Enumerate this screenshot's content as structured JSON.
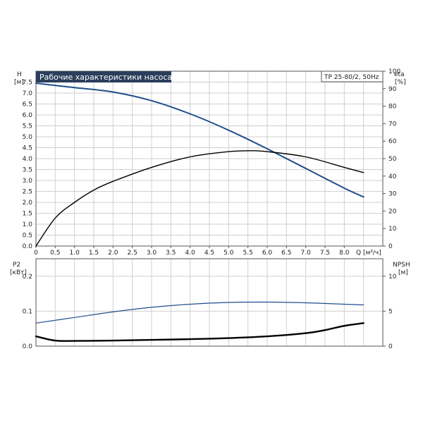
{
  "chart_data": [
    {
      "type": "line",
      "title": "Рабочие характеристики насоса",
      "model_label": "TP 25-80/2, 50Hz",
      "left_axis": {
        "label": "H",
        "unit": "[м]",
        "ylim": [
          0,
          8.0
        ],
        "ticks": [
          "0.0",
          "0.5",
          "1.0",
          "1.5",
          "2.0",
          "2.5",
          "3.0",
          "3.5",
          "4.0",
          "4.5",
          "5.0",
          "5.5",
          "6.0",
          "6.5",
          "7.0",
          "7.5"
        ]
      },
      "right_axis": {
        "label": "eta",
        "unit": "[%]",
        "ylim": [
          0,
          100
        ],
        "ticks": [
          "0",
          "10",
          "20",
          "30",
          "40",
          "50",
          "60",
          "70",
          "80",
          "90",
          "100"
        ]
      },
      "x_axis": {
        "label": "Q [м³/ч]",
        "xlim": [
          0,
          9.0
        ],
        "ticks": [
          "0",
          "0.5",
          "1.0",
          "1.5",
          "2.0",
          "2.5",
          "3.0",
          "3.5",
          "4.0",
          "4.5",
          "5.0",
          "5.5",
          "6.0",
          "6.5",
          "7.0",
          "7.5",
          "8.0"
        ]
      },
      "grid": true,
      "series": [
        {
          "axis": "left",
          "color": "#1f4e8c",
          "x": [
            0,
            1,
            2,
            3,
            4,
            5,
            6,
            7,
            8,
            8.5
          ],
          "y": [
            7.45,
            7.25,
            7.05,
            6.65,
            6.05,
            5.3,
            4.45,
            3.55,
            2.65,
            2.25
          ]
        },
        {
          "axis": "right",
          "color": "#000000",
          "x": [
            0,
            0.5,
            1,
            1.5,
            2,
            3,
            4,
            5,
            5.6,
            6,
            7,
            8,
            8.5
          ],
          "y": [
            0,
            16,
            25,
            32,
            37,
            45,
            51,
            54,
            54.5,
            54,
            51,
            45,
            42
          ]
        }
      ]
    },
    {
      "type": "line",
      "left_axis": {
        "label": "P2",
        "unit": "[кВт]",
        "ylim": [
          0,
          0.25
        ],
        "ticks": [
          "0.0",
          "0.1",
          "0.2"
        ]
      },
      "right_axis": {
        "label": "NPSH",
        "unit": "[м]",
        "ylim": [
          0,
          12.5
        ],
        "ticks": [
          "0",
          "5",
          "10"
        ]
      },
      "x_axis": {
        "xlim": [
          0,
          9.0
        ]
      },
      "grid": true,
      "series": [
        {
          "axis": "left",
          "color": "#1f4e8c",
          "x": [
            0,
            1,
            2,
            3,
            4,
            5,
            6,
            7,
            8,
            8.5
          ],
          "y": [
            0.066,
            0.082,
            0.098,
            0.111,
            0.12,
            0.125,
            0.126,
            0.124,
            0.12,
            0.118
          ]
        },
        {
          "axis": "left",
          "color": "#000000",
          "x": [
            0,
            0.5,
            1,
            2,
            3,
            4,
            5,
            6,
            7,
            7.5,
            8,
            8.5
          ],
          "y": [
            0.028,
            0.016,
            0.015,
            0.016,
            0.018,
            0.02,
            0.023,
            0.028,
            0.037,
            0.046,
            0.058,
            0.066
          ]
        }
      ]
    }
  ]
}
